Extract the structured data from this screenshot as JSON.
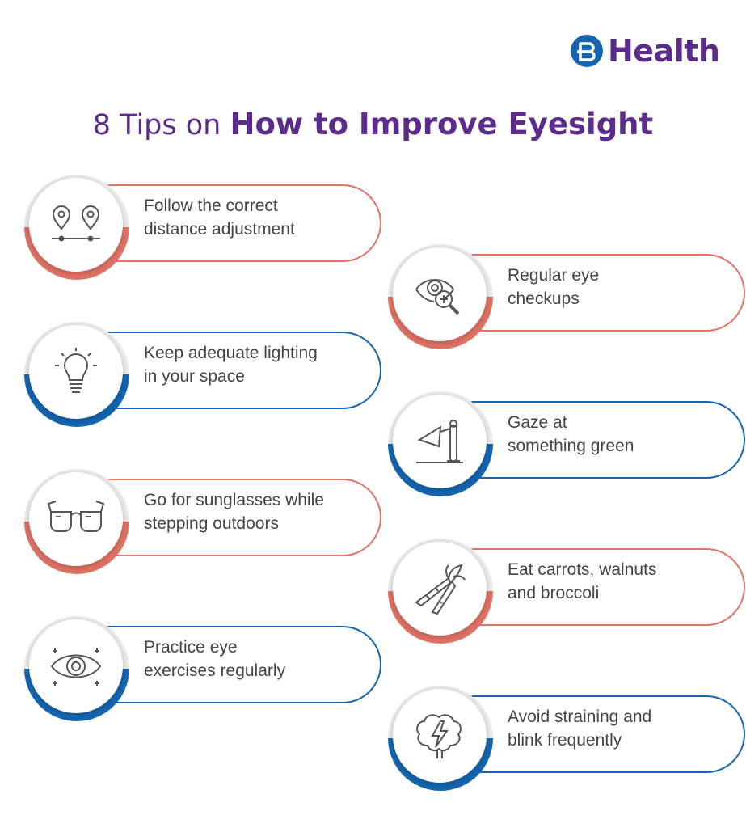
{
  "brand": {
    "name": "Health",
    "icon": "bajaj-b-logo-icon"
  },
  "title": {
    "prefix": "8 Tips on",
    "emphasis": "How to Improve Eyesight"
  },
  "colors": {
    "coral": "#e07365",
    "blue": "#1565b0",
    "purple": "#5b2c8b",
    "text": "#444444"
  },
  "tips": [
    {
      "line1": "Follow the correct",
      "line2": "distance adjustment",
      "icon": "location-pins-icon",
      "accent": "coral"
    },
    {
      "line1": "Regular eye",
      "line2": "checkups",
      "icon": "eye-magnifier-icon",
      "accent": "coral"
    },
    {
      "line1": "Keep adequate lighting",
      "line2": "in your space",
      "icon": "light-bulb-icon",
      "accent": "blue"
    },
    {
      "line1": "Gaze at",
      "line2": "something green",
      "icon": "desk-lamp-icon",
      "accent": "blue"
    },
    {
      "line1": "Go for sunglasses while",
      "line2": "stepping outdoors",
      "icon": "sunglasses-icon",
      "accent": "coral"
    },
    {
      "line1": "Eat carrots, walnuts",
      "line2": "and broccoli",
      "icon": "carrots-icon",
      "accent": "coral"
    },
    {
      "line1": "Practice eye",
      "line2": "exercises regularly",
      "icon": "sparkling-eye-icon",
      "accent": "blue"
    },
    {
      "line1": "Avoid straining and",
      "line2": "blink frequently",
      "icon": "brain-lightning-icon",
      "accent": "blue"
    }
  ]
}
